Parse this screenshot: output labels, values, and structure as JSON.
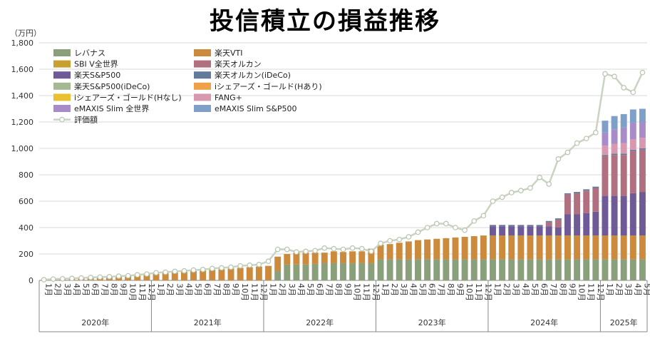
{
  "chart_data": {
    "type": "bar",
    "title": "投信積立の損益推移",
    "unit": "（万円）",
    "ylim": [
      0,
      1800
    ],
    "yticks": [
      "0",
      "200",
      "400",
      "600",
      "800",
      "1,000",
      "1,200",
      "1,400",
      "1,600",
      "1,800"
    ],
    "month_labels": [
      "1月",
      "2月",
      "3月",
      "4月",
      "5月",
      "6月",
      "7月",
      "8月",
      "9月",
      "10月",
      "11月",
      "12月"
    ],
    "years": [
      {
        "label": "2020年",
        "months": 12
      },
      {
        "label": "2021年",
        "months": 12
      },
      {
        "label": "2022年",
        "months": 12
      },
      {
        "label": "2023年",
        "months": 12
      },
      {
        "label": "2024年",
        "months": 12
      },
      {
        "label": "2025年",
        "months": 5
      }
    ],
    "legend_placement": "top-left",
    "series": [
      {
        "name": "レバナス",
        "color": "#8aa07a",
        "values": [
          0,
          0,
          0,
          0,
          0,
          0,
          0,
          0,
          0,
          0,
          0,
          0,
          0,
          0,
          0,
          0,
          0,
          0,
          0,
          0,
          0,
          0,
          0,
          0,
          0,
          70,
          120,
          120,
          120,
          125,
          130,
          130,
          130,
          130,
          130,
          130,
          160,
          160,
          160,
          160,
          160,
          160,
          160,
          160,
          160,
          160,
          160,
          160,
          160,
          160,
          160,
          160,
          160,
          160,
          160,
          160,
          160,
          160,
          160,
          160,
          160,
          160,
          160,
          160,
          160
        ]
      },
      {
        "name": "楽天VTI",
        "color": "#cc8a3c",
        "values": [
          5,
          10,
          12,
          15,
          18,
          20,
          22,
          25,
          28,
          32,
          38,
          45,
          50,
          55,
          60,
          65,
          70,
          75,
          80,
          85,
          90,
          95,
          100,
          105,
          110,
          110,
          80,
          90,
          90,
          85,
          80,
          90,
          85,
          90,
          90,
          110,
          110,
          115,
          125,
          135,
          145,
          150,
          155,
          160,
          165,
          170,
          175,
          180,
          180,
          180,
          180,
          180,
          180,
          180,
          180,
          180,
          180,
          180,
          180,
          180,
          180,
          180,
          180,
          180,
          180
        ]
      },
      {
        "name": "楽天S&P500",
        "color": "#6e5a96",
        "values": [
          0,
          0,
          0,
          0,
          0,
          0,
          0,
          0,
          0,
          0,
          0,
          0,
          0,
          0,
          0,
          0,
          0,
          0,
          0,
          0,
          0,
          0,
          0,
          0,
          0,
          0,
          0,
          0,
          0,
          0,
          0,
          0,
          0,
          0,
          0,
          0,
          0,
          0,
          0,
          0,
          0,
          0,
          0,
          0,
          0,
          0,
          0,
          0,
          70,
          70,
          70,
          70,
          70,
          70,
          70,
          60,
          160,
          160,
          170,
          180,
          300,
          300,
          300,
          320,
          330
        ]
      },
      {
        "name": "楽天オルカン",
        "color": "#b07080",
        "values": [
          0,
          0,
          0,
          0,
          0,
          0,
          0,
          0,
          0,
          0,
          0,
          0,
          0,
          0,
          0,
          0,
          0,
          0,
          0,
          0,
          0,
          0,
          0,
          0,
          0,
          0,
          0,
          0,
          0,
          0,
          0,
          0,
          0,
          0,
          0,
          0,
          0,
          0,
          0,
          0,
          0,
          0,
          0,
          0,
          0,
          0,
          0,
          0,
          0,
          0,
          0,
          0,
          0,
          0,
          30,
          60,
          150,
          160,
          170,
          180,
          300,
          310,
          310,
          320,
          320
        ]
      },
      {
        "name": "SBI V全世界",
        "color": "#c8a030",
        "values": [
          0,
          0,
          0,
          0,
          0,
          0,
          0,
          0,
          0,
          0,
          0,
          0,
          0,
          0,
          0,
          0,
          0,
          0,
          0,
          0,
          0,
          0,
          0,
          0,
          0,
          0,
          0,
          0,
          0,
          0,
          0,
          0,
          0,
          0,
          0,
          0,
          0,
          0,
          0,
          0,
          0,
          0,
          0,
          0,
          0,
          0,
          0,
          0,
          0,
          0,
          0,
          0,
          0,
          0,
          0,
          0,
          0,
          0,
          0,
          0,
          0,
          0,
          0,
          0,
          0
        ]
      },
      {
        "name": "楽天オルカン(iDeCo)",
        "color": "#637a9a",
        "values": [
          0,
          0,
          0,
          0,
          0,
          0,
          0,
          0,
          0,
          0,
          0,
          0,
          0,
          0,
          0,
          0,
          0,
          0,
          0,
          0,
          0,
          0,
          0,
          0,
          0,
          0,
          0,
          0,
          0,
          0,
          0,
          0,
          0,
          0,
          0,
          0,
          0,
          0,
          0,
          0,
          0,
          0,
          0,
          0,
          0,
          0,
          0,
          0,
          10,
          10,
          10,
          10,
          10,
          10,
          10,
          10,
          10,
          10,
          10,
          10,
          10,
          10,
          10,
          10,
          10
        ]
      },
      {
        "name": "楽天S&P500(iDeCo)",
        "color": "#a5b890",
        "values": [
          0,
          0,
          0,
          0,
          0,
          0,
          0,
          0,
          0,
          0,
          0,
          0,
          0,
          0,
          0,
          0,
          0,
          0,
          0,
          0,
          0,
          0,
          0,
          0,
          0,
          0,
          0,
          0,
          0,
          0,
          0,
          0,
          0,
          0,
          0,
          0,
          0,
          0,
          0,
          0,
          0,
          0,
          0,
          0,
          0,
          0,
          0,
          0,
          0,
          0,
          0,
          0,
          0,
          0,
          0,
          0,
          0,
          0,
          0,
          0,
          0,
          0,
          0,
          0,
          0
        ]
      },
      {
        "name": "iシェアーズ・ゴールド(Hあり)",
        "color": "#f0a048",
        "values": [
          0,
          0,
          0,
          0,
          0,
          0,
          0,
          0,
          0,
          0,
          0,
          0,
          0,
          0,
          0,
          0,
          0,
          0,
          0,
          0,
          0,
          0,
          0,
          0,
          0,
          0,
          0,
          0,
          0,
          0,
          0,
          0,
          0,
          0,
          0,
          0,
          0,
          0,
          0,
          0,
          0,
          0,
          0,
          0,
          0,
          0,
          0,
          0,
          0,
          0,
          0,
          0,
          0,
          0,
          0,
          0,
          0,
          0,
          0,
          0,
          0,
          0,
          0,
          0,
          0
        ]
      },
      {
        "name": "iシェアーズ・ゴールド(Hなし)",
        "color": "#e8c030",
        "values": [
          0,
          0,
          0,
          0,
          0,
          0,
          0,
          0,
          0,
          0,
          0,
          0,
          0,
          0,
          0,
          0,
          0,
          0,
          0,
          0,
          0,
          0,
          0,
          0,
          0,
          0,
          0,
          0,
          0,
          0,
          0,
          0,
          0,
          0,
          0,
          0,
          0,
          0,
          0,
          0,
          0,
          0,
          0,
          0,
          0,
          0,
          0,
          0,
          0,
          0,
          0,
          0,
          0,
          0,
          0,
          0,
          0,
          0,
          0,
          0,
          0,
          0,
          0,
          0,
          0
        ]
      },
      {
        "name": "FANG+",
        "color": "#d898b0",
        "values": [
          0,
          0,
          0,
          0,
          0,
          0,
          0,
          0,
          0,
          0,
          0,
          0,
          0,
          0,
          0,
          0,
          0,
          0,
          0,
          0,
          0,
          0,
          0,
          0,
          0,
          0,
          0,
          0,
          0,
          0,
          0,
          0,
          0,
          0,
          0,
          0,
          0,
          0,
          0,
          0,
          0,
          0,
          0,
          0,
          0,
          0,
          0,
          0,
          0,
          0,
          0,
          0,
          0,
          0,
          0,
          0,
          0,
          0,
          0,
          0,
          70,
          75,
          80,
          80,
          80
        ]
      },
      {
        "name": "eMAXIS Slim 全世界",
        "color": "#a88cc8",
        "values": [
          0,
          0,
          0,
          0,
          0,
          0,
          0,
          0,
          0,
          0,
          0,
          0,
          0,
          0,
          0,
          0,
          0,
          0,
          0,
          0,
          0,
          0,
          0,
          0,
          0,
          0,
          0,
          0,
          0,
          0,
          0,
          0,
          0,
          0,
          0,
          0,
          0,
          0,
          0,
          0,
          0,
          0,
          0,
          0,
          0,
          0,
          0,
          0,
          0,
          0,
          0,
          0,
          0,
          0,
          0,
          0,
          0,
          0,
          0,
          0,
          100,
          110,
          120,
          125,
          120
        ]
      },
      {
        "name": "eMAXIS Slim S&P500",
        "color": "#7ea0c8",
        "values": [
          0,
          0,
          0,
          0,
          0,
          0,
          0,
          0,
          0,
          0,
          0,
          0,
          0,
          0,
          0,
          0,
          0,
          0,
          0,
          0,
          0,
          0,
          0,
          0,
          0,
          0,
          0,
          0,
          0,
          0,
          0,
          0,
          0,
          0,
          0,
          0,
          0,
          0,
          0,
          0,
          0,
          0,
          0,
          0,
          0,
          0,
          0,
          0,
          0,
          0,
          0,
          0,
          0,
          0,
          0,
          0,
          0,
          0,
          0,
          0,
          90,
          100,
          100,
          100,
          100
        ]
      }
    ],
    "line": {
      "name": "評価額",
      "color": "#c8d4c0",
      "values": [
        5,
        10,
        12,
        15,
        18,
        22,
        25,
        28,
        32,
        35,
        42,
        48,
        58,
        62,
        68,
        72,
        78,
        82,
        90,
        95,
        100,
        110,
        115,
        120,
        145,
        235,
        235,
        215,
        220,
        225,
        245,
        240,
        235,
        245,
        240,
        220,
        280,
        300,
        310,
        330,
        365,
        400,
        430,
        430,
        400,
        380,
        450,
        490,
        600,
        630,
        665,
        680,
        700,
        780,
        730,
        920,
        970,
        1040,
        1075,
        1120,
        1565,
        1545,
        1460,
        1425,
        1575
      ]
    }
  }
}
